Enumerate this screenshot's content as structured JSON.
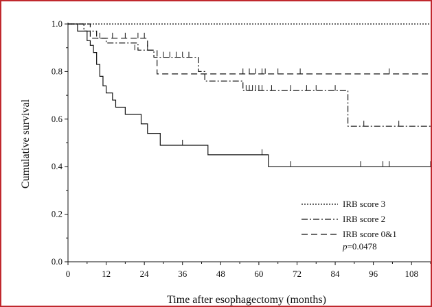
{
  "chart_data": {
    "type": "line",
    "subtype": "kaplan-meier",
    "title": "",
    "xlabel": "Time after esophagectomy (months)",
    "ylabel": "Cumulative survival",
    "xlim": [
      0,
      114
    ],
    "ylim": [
      0,
      1.0
    ],
    "xticks": [
      0,
      12,
      24,
      36,
      48,
      60,
      72,
      84,
      96,
      108
    ],
    "yticks": [
      0.0,
      0.2,
      0.4,
      0.6,
      0.8,
      1.0
    ],
    "ytick_labels": [
      "0.0",
      "0.2",
      "0.4",
      "0.6",
      "0.8",
      "1.0"
    ],
    "grid": false,
    "legend_position": "bottom-right",
    "annotation": {
      "prefix": "p",
      "text": "=0.0478"
    },
    "series": [
      {
        "name": "IRB score 3",
        "style": "dotted",
        "steps": [
          [
            0,
            1.0
          ],
          [
            114,
            1.0
          ]
        ],
        "censored": []
      },
      {
        "name": "IRB score 2",
        "style": "dashdot",
        "steps": [
          [
            0,
            1.0
          ],
          [
            5,
            0.97
          ],
          [
            9,
            0.94
          ],
          [
            12,
            0.92
          ],
          [
            22,
            0.89
          ],
          [
            27,
            0.86
          ],
          [
            41,
            0.8
          ],
          [
            43,
            0.76
          ],
          [
            55,
            0.72
          ],
          [
            88,
            0.57
          ],
          [
            114,
            0.57
          ]
        ],
        "censored": [
          [
            21,
            0.89
          ],
          [
            25,
            0.89
          ],
          [
            30,
            0.86
          ],
          [
            32,
            0.86
          ],
          [
            34,
            0.86
          ],
          [
            36,
            0.86
          ],
          [
            38,
            0.86
          ],
          [
            56,
            0.72
          ],
          [
            57,
            0.72
          ],
          [
            58,
            0.72
          ],
          [
            59,
            0.72
          ],
          [
            60,
            0.72
          ],
          [
            61,
            0.72
          ],
          [
            64,
            0.72
          ],
          [
            70,
            0.72
          ],
          [
            75,
            0.72
          ],
          [
            78,
            0.72
          ],
          [
            84,
            0.72
          ],
          [
            93,
            0.57
          ],
          [
            104,
            0.57
          ]
        ]
      },
      {
        "name": "IRB score 0&1",
        "style": "dashed",
        "steps": [
          [
            0,
            1.0
          ],
          [
            7,
            0.94
          ],
          [
            25,
            0.89
          ],
          [
            28,
            0.79
          ],
          [
            114,
            0.79
          ]
        ],
        "censored": [
          [
            10,
            0.94
          ],
          [
            14,
            0.94
          ],
          [
            18,
            0.94
          ],
          [
            22,
            0.94
          ],
          [
            24,
            0.94
          ],
          [
            55,
            0.79
          ],
          [
            57,
            0.79
          ],
          [
            59,
            0.79
          ],
          [
            61,
            0.79
          ],
          [
            62,
            0.79
          ],
          [
            66,
            0.79
          ],
          [
            73,
            0.79
          ],
          [
            101,
            0.79
          ]
        ]
      },
      {
        "name": "",
        "style": "solid",
        "steps": [
          [
            0,
            1.0
          ],
          [
            3,
            0.97
          ],
          [
            6,
            0.93
          ],
          [
            7,
            0.91
          ],
          [
            8,
            0.88
          ],
          [
            9,
            0.83
          ],
          [
            10,
            0.78
          ],
          [
            11,
            0.74
          ],
          [
            12,
            0.71
          ],
          [
            14,
            0.68
          ],
          [
            15,
            0.65
          ],
          [
            18,
            0.62
          ],
          [
            23,
            0.58
          ],
          [
            25,
            0.54
          ],
          [
            29,
            0.49
          ],
          [
            44,
            0.45
          ],
          [
            63,
            0.4
          ],
          [
            114,
            0.4
          ]
        ],
        "censored": [
          [
            36,
            0.49
          ],
          [
            61,
            0.45
          ],
          [
            70,
            0.4
          ],
          [
            92,
            0.4
          ],
          [
            99,
            0.4
          ],
          [
            101,
            0.4
          ],
          [
            114,
            0.4
          ]
        ]
      }
    ]
  }
}
